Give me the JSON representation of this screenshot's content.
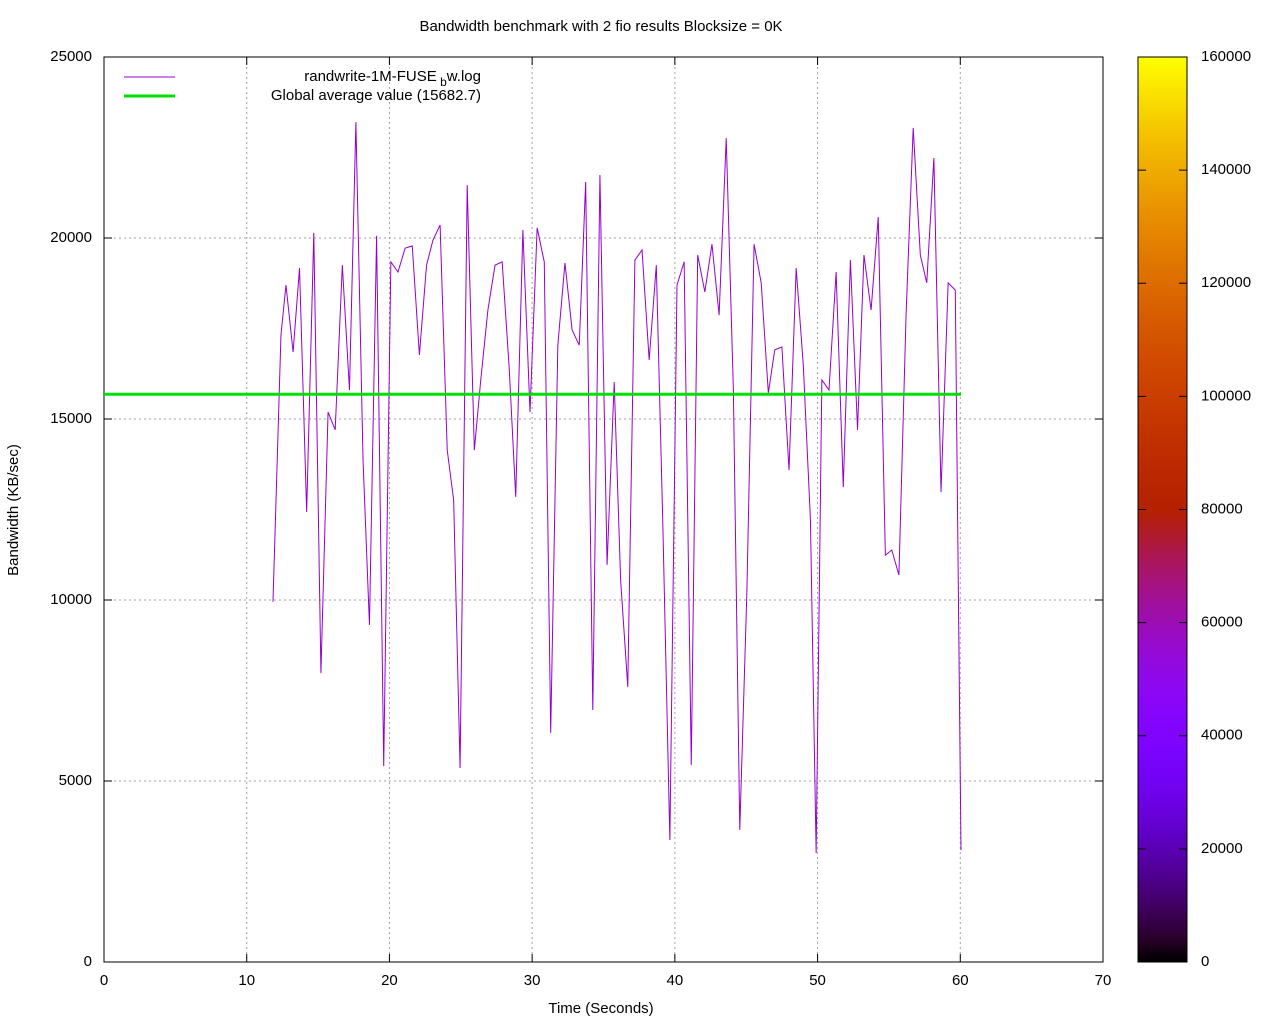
{
  "chart_data": {
    "type": "line",
    "title": "Bandwidth benchmark with 2 fio results  Blocksize = 0K",
    "x_label": "Time (Seconds)",
    "y_label": "Bandwidth (KB/sec)",
    "xlim": [
      0,
      70
    ],
    "xticks": [
      0,
      10,
      20,
      30,
      40,
      50,
      60,
      70
    ],
    "ylim": [
      0,
      25000
    ],
    "yticks": [
      0,
      5000,
      10000,
      15000,
      20000,
      25000
    ],
    "grid": true,
    "legend": "top-left",
    "series": [
      {
        "name": "randwrite-1M-FUSE_bw.log",
        "color": "#9400d3",
        "x": [
          11.84,
          12.4,
          12.75,
          13.25,
          13.7,
          14.2,
          14.7,
          15.2,
          15.7,
          16.2,
          16.7,
          17.2,
          17.65,
          18.15,
          18.6,
          19.1,
          19.6,
          20.1,
          20.6,
          21.1,
          21.6,
          22.1,
          22.6,
          23.05,
          23.55,
          24.05,
          24.5,
          24.95,
          25.45,
          25.95,
          26.4,
          26.9,
          27.4,
          27.9,
          28.4,
          28.85,
          29.35,
          29.85,
          30.35,
          30.85,
          31.3,
          31.8,
          32.3,
          32.8,
          33.3,
          33.75,
          34.25,
          34.75,
          35.25,
          35.75,
          36.2,
          36.7,
          37.2,
          37.7,
          38.2,
          38.7,
          39.15,
          39.65,
          40.15,
          40.65,
          41.15,
          41.6,
          42.1,
          42.6,
          43.1,
          43.6,
          44.1,
          44.55,
          45.05,
          45.55,
          46.05,
          46.55,
          47.0,
          47.5,
          48.0,
          48.5,
          49.0,
          49.5,
          49.9,
          50.3,
          50.8,
          51.3,
          51.8,
          52.3,
          52.8,
          53.25,
          53.75,
          54.25,
          54.75,
          55.2,
          55.7,
          56.2,
          56.7,
          57.2,
          57.65,
          58.15,
          58.65,
          59.15,
          59.65,
          60.05
        ],
        "values": [
          9950,
          17320,
          18700,
          16850,
          19170,
          12430,
          20140,
          7980,
          15190,
          14700,
          19250,
          15800,
          23200,
          13870,
          9310,
          20060,
          5410,
          19340,
          19060,
          19720,
          19780,
          16770,
          19250,
          19940,
          20360,
          14140,
          12760,
          5360,
          21460,
          14140,
          16080,
          18010,
          19250,
          19340,
          16350,
          12850,
          20220,
          15190,
          20280,
          19340,
          6330,
          17040,
          19310,
          17460,
          17040,
          21550,
          6960,
          21740,
          10970,
          16020,
          10550,
          7600,
          19390,
          19670,
          16630,
          19250,
          12210,
          3370,
          18700,
          19340,
          5440,
          19530,
          18510,
          19830,
          17870,
          22760,
          15800,
          3650,
          10280,
          19830,
          18760,
          15720,
          16910,
          16990,
          13590,
          19170,
          16490,
          12210,
          3010,
          16080,
          15800,
          19060,
          13120,
          19390,
          14700,
          19530,
          18010,
          20580,
          11240,
          11380,
          10690,
          17870,
          23040,
          19530,
          18760,
          22210,
          12980,
          18760,
          18560,
          3090
        ]
      }
    ],
    "hline": {
      "name": "Global average value (15682.7)",
      "value": 15682.7,
      "x": [
        0,
        60.05
      ],
      "color": "#00e000"
    },
    "colorbar": {
      "lim": [
        0,
        160000
      ],
      "ticks": [
        0,
        20000,
        40000,
        60000,
        80000,
        100000,
        120000,
        140000,
        160000
      ]
    }
  }
}
